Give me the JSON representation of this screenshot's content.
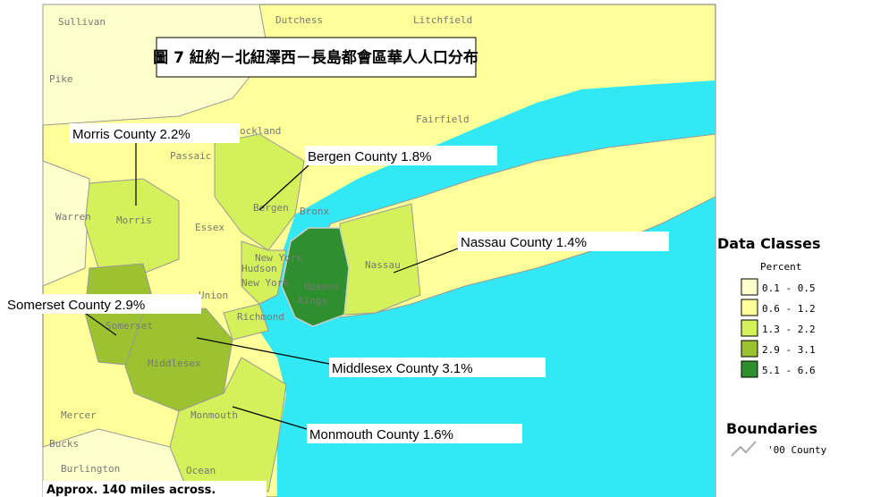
{
  "title": "圖 7 紐約－北紐澤西－長島都會區華人人口分布",
  "callouts": [
    "Morris County 2.2%",
    "Bergen County 1.8%",
    "Nassau County 1.4%",
    "Somerset County 2.9%",
    "Middlesex County 3.1%",
    "Monmouth County 1.6%"
  ],
  "places": [
    "Sullivan",
    "Dutchess",
    "Litchfield",
    "Pike",
    "Fairfield",
    "ockland",
    "Passaic",
    "Warren",
    "Morris",
    "Bergen",
    "Bronx",
    "Essex",
    "New York",
    "Hudson",
    "Nassau",
    "New York",
    "Queens",
    "Kings",
    "Union",
    "Richmond",
    "Somerset",
    "Middlesex",
    "Mercer",
    "Monmouth",
    "Bucks",
    "Burlington",
    "Ocean"
  ],
  "scale_note": "Approx. 140 miles across.",
  "legend": {
    "title": "Data Classes",
    "subtitle": "Percent",
    "classes": [
      {
        "label": "0.1 - 0.5",
        "color": "#ffffcc"
      },
      {
        "label": "0.6 - 1.2",
        "color": "#ffff99"
      },
      {
        "label": "1.3 - 2.2",
        "color": "#d4f05a"
      },
      {
        "label": "2.9 - 3.1",
        "color": "#9cc232"
      },
      {
        "label": "5.1 - 6.6",
        "color": "#2e8f2e"
      }
    ],
    "boundaries_title": "Boundaries",
    "boundaries_item": "'00 County"
  }
}
